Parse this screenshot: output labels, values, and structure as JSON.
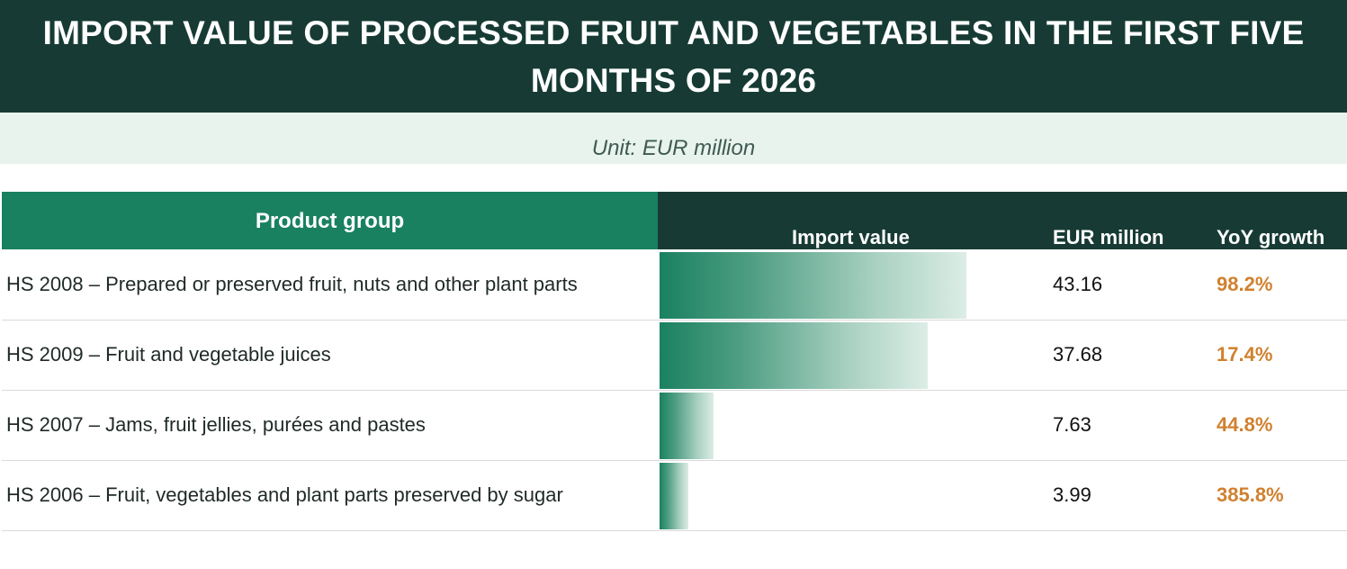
{
  "title": "IMPORT VALUE OF PROCESSED FRUIT AND VEGETABLES IN THE FIRST FIVE MONTHS OF 2026",
  "unit_label": "Unit: EUR million",
  "columns": {
    "product": "Product group",
    "import_value": "Import value",
    "eur_million": "EUR million",
    "yoy": "YoY growth"
  },
  "colors": {
    "header_dark": "#173b34",
    "header_green": "#1a8160",
    "growth_orange": "#d0812f",
    "unit_band": "#e7f3ec"
  },
  "chart_data": {
    "type": "bar",
    "orientation": "horizontal",
    "title": "IMPORT VALUE OF PROCESSED FRUIT AND VEGETABLES IN THE FIRST FIVE MONTHS OF 2026",
    "categories": [
      "HS 2008 – Prepared or preserved fruit, nuts and other plant parts",
      "HS 2009 – Fruit and vegetable juices",
      "HS 2007 – Jams, fruit jellies, purées and pastes",
      "HS 2006 – Fruit, vegetables and plant parts preserved by sugar"
    ],
    "values": [
      43.16,
      37.68,
      7.63,
      3.99
    ],
    "value_labels": [
      "43.16",
      "37.68",
      "7.63",
      "3.99"
    ],
    "yoy_growth": [
      "98.2%",
      "17.4%",
      "44.8%",
      "385.8%"
    ],
    "xlim": [
      0,
      43.16
    ],
    "grid": false
  }
}
